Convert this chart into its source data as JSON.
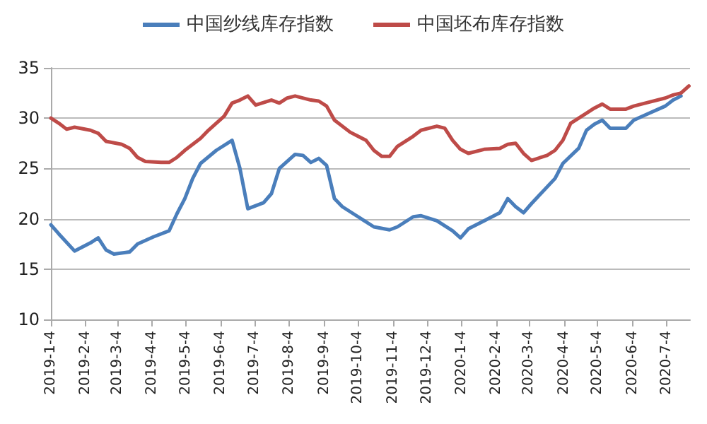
{
  "chart_data": {
    "type": "line",
    "series": [
      {
        "name": "中国纱线库存指数",
        "color": "#4a7ebb",
        "x": [
          "2019-01-04",
          "2019-01-11",
          "2019-01-25",
          "2019-02-08",
          "2019-02-15",
          "2019-02-22",
          "2019-03-01",
          "2019-03-15",
          "2019-03-22",
          "2019-04-05",
          "2019-04-19",
          "2019-04-26",
          "2019-05-03",
          "2019-05-10",
          "2019-05-17",
          "2019-05-31",
          "2019-06-14",
          "2019-06-21",
          "2019-06-28",
          "2019-07-12",
          "2019-07-19",
          "2019-07-26",
          "2019-08-09",
          "2019-08-16",
          "2019-08-23",
          "2019-08-30",
          "2019-09-06",
          "2019-09-13",
          "2019-09-20",
          "2019-10-04",
          "2019-10-18",
          "2019-11-01",
          "2019-11-08",
          "2019-11-22",
          "2019-11-29",
          "2019-12-13",
          "2019-12-27",
          "2020-01-03",
          "2020-01-10",
          "2020-01-24",
          "2020-02-07",
          "2020-02-14",
          "2020-02-21",
          "2020-02-28",
          "2020-03-06",
          "2020-03-27",
          "2020-04-03",
          "2020-04-17",
          "2020-04-24",
          "2020-05-01",
          "2020-05-08",
          "2020-05-15",
          "2020-05-29",
          "2020-06-05",
          "2020-06-19",
          "2020-07-03",
          "2020-07-10",
          "2020-07-17"
        ],
        "values": [
          19.4,
          18.5,
          16.8,
          17.6,
          18.1,
          16.9,
          16.5,
          16.7,
          17.5,
          18.2,
          18.8,
          20.5,
          22.0,
          24.0,
          25.5,
          26.8,
          27.8,
          25.0,
          21.0,
          21.6,
          22.5,
          25.0,
          26.4,
          26.3,
          25.6,
          26.0,
          25.3,
          22.0,
          21.2,
          20.2,
          19.2,
          18.9,
          19.2,
          20.2,
          20.3,
          19.8,
          18.8,
          18.1,
          19.0,
          19.8,
          20.6,
          22.0,
          21.2,
          20.6,
          21.5,
          24.0,
          25.5,
          27.0,
          28.8,
          29.4,
          29.8,
          29.0,
          29.0,
          29.8,
          30.5,
          31.2,
          31.8,
          32.2
        ]
      },
      {
        "name": "中国坯布库存指数",
        "color": "#be4b48",
        "x": [
          "2019-01-04",
          "2019-01-11",
          "2019-01-18",
          "2019-01-25",
          "2019-02-08",
          "2019-02-15",
          "2019-02-22",
          "2019-03-08",
          "2019-03-15",
          "2019-03-22",
          "2019-03-29",
          "2019-04-12",
          "2019-04-19",
          "2019-04-26",
          "2019-05-03",
          "2019-05-17",
          "2019-05-24",
          "2019-06-07",
          "2019-06-14",
          "2019-06-21",
          "2019-06-28",
          "2019-07-05",
          "2019-07-19",
          "2019-07-26",
          "2019-08-02",
          "2019-08-09",
          "2019-08-23",
          "2019-08-30",
          "2019-09-06",
          "2019-09-13",
          "2019-09-27",
          "2019-10-11",
          "2019-10-18",
          "2019-10-25",
          "2019-11-01",
          "2019-11-08",
          "2019-11-22",
          "2019-11-29",
          "2019-12-13",
          "2019-12-20",
          "2019-12-27",
          "2020-01-03",
          "2020-01-10",
          "2020-01-24",
          "2020-02-07",
          "2020-02-14",
          "2020-02-21",
          "2020-02-28",
          "2020-03-06",
          "2020-03-20",
          "2020-03-27",
          "2020-04-03",
          "2020-04-10",
          "2020-04-24",
          "2020-05-01",
          "2020-05-08",
          "2020-05-15",
          "2020-05-29",
          "2020-06-05",
          "2020-06-19",
          "2020-07-03",
          "2020-07-10",
          "2020-07-17",
          "2020-07-24"
        ],
        "values": [
          30.0,
          29.5,
          28.9,
          29.1,
          28.8,
          28.5,
          27.7,
          27.4,
          27.0,
          26.1,
          25.7,
          25.6,
          25.6,
          26.1,
          26.8,
          28.0,
          28.8,
          30.2,
          31.5,
          31.8,
          32.2,
          31.3,
          31.8,
          31.5,
          32.0,
          32.2,
          31.8,
          31.7,
          31.2,
          29.8,
          28.6,
          27.8,
          26.8,
          26.2,
          26.2,
          27.2,
          28.2,
          28.8,
          29.2,
          29.0,
          27.8,
          26.9,
          26.5,
          26.9,
          27.0,
          27.4,
          27.5,
          26.5,
          25.8,
          26.3,
          26.8,
          27.8,
          29.5,
          30.5,
          31.0,
          31.4,
          30.9,
          30.9,
          31.2,
          31.6,
          32.0,
          32.3,
          32.5,
          33.2
        ]
      }
    ],
    "xlim": [
      "2019-01-04",
      "2020-07-25"
    ],
    "xticks": [
      {
        "value": "2019-01-04",
        "label": "2019-1-4"
      },
      {
        "value": "2019-02-04",
        "label": "2019-2-4"
      },
      {
        "value": "2019-03-04",
        "label": "2019-3-4"
      },
      {
        "value": "2019-04-04",
        "label": "2019-4-4"
      },
      {
        "value": "2019-05-04",
        "label": "2019-5-4"
      },
      {
        "value": "2019-06-04",
        "label": "2019-6-4"
      },
      {
        "value": "2019-07-04",
        "label": "2019-7-4"
      },
      {
        "value": "2019-08-04",
        "label": "2019-8-4"
      },
      {
        "value": "2019-09-04",
        "label": "2019-9-4"
      },
      {
        "value": "2019-10-04",
        "label": "2019-10-4"
      },
      {
        "value": "2019-11-04",
        "label": "2019-11-4"
      },
      {
        "value": "2019-12-04",
        "label": "2019-12-4"
      },
      {
        "value": "2020-01-04",
        "label": "2020-1-4"
      },
      {
        "value": "2020-02-04",
        "label": "2020-2-4"
      },
      {
        "value": "2020-03-04",
        "label": "2020-3-4"
      },
      {
        "value": "2020-04-04",
        "label": "2020-4-4"
      },
      {
        "value": "2020-05-04",
        "label": "2020-5-4"
      },
      {
        "value": "2020-06-04",
        "label": "2020-6-4"
      },
      {
        "value": "2020-07-04",
        "label": "2020-7-4"
      }
    ],
    "ylim": [
      10,
      35
    ],
    "yticks": [
      10,
      15,
      20,
      25,
      30,
      35
    ],
    "grid": "y",
    "legend": "top",
    "marker": "none",
    "line_style": "solid"
  }
}
